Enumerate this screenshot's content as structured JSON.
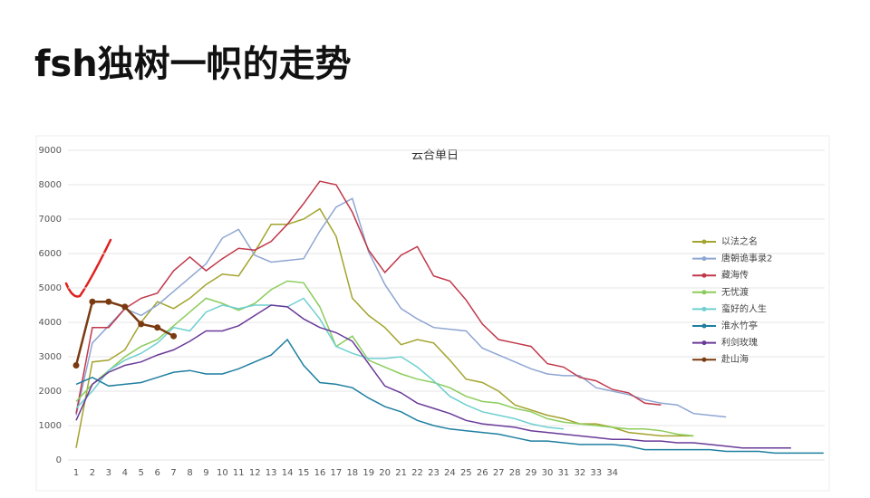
{
  "header": {
    "title": "fsh独树一帜的走势"
  },
  "chart_data": {
    "type": "line",
    "title": "云合单日",
    "categories": [
      1,
      2,
      3,
      4,
      5,
      6,
      7,
      8,
      9,
      10,
      11,
      12,
      13,
      14,
      15,
      16,
      17,
      18,
      19,
      20,
      21,
      22,
      23,
      24,
      25,
      26,
      27,
      28,
      29,
      30,
      31,
      32,
      33,
      34,
      null,
      null,
      null,
      null,
      null,
      null,
      null,
      null,
      null,
      null,
      null,
      null,
      null
    ],
    "ylim": [
      0,
      9000
    ],
    "yticks": [
      0,
      1000,
      2000,
      3000,
      4000,
      5000,
      6000,
      7000,
      8000,
      9000
    ],
    "grid": true,
    "series": [
      {
        "name": "以法之名",
        "color": "#a3a32e",
        "values": [
          350,
          2850,
          2900,
          3200,
          4000,
          4600,
          4400,
          4700,
          5100,
          5400,
          5350,
          6050,
          6850,
          6850,
          7000,
          7300,
          6500,
          4700,
          4200,
          3850,
          3350,
          3500,
          3400,
          2900,
          2350,
          2250,
          2000,
          1600,
          1450,
          1300,
          1200,
          1050,
          1050,
          950,
          800,
          750,
          700,
          700,
          700,
          null,
          null,
          null,
          null,
          null,
          null,
          null,
          null
        ]
      },
      {
        "name": "唐朝诡事录2",
        "color": "#8ea6d2",
        "values": [
          1300,
          3400,
          3900,
          4400,
          4200,
          4500,
          4900,
          5300,
          5700,
          6450,
          6700,
          5950,
          5750,
          5800,
          5850,
          6650,
          7350,
          7600,
          6050,
          5100,
          4400,
          4100,
          3850,
          3800,
          3750,
          3250,
          3050,
          2850,
          2650,
          2500,
          2450,
          2450,
          2100,
          2000,
          1900,
          1750,
          1650,
          1600,
          1350,
          1300,
          1250,
          null,
          null,
          null,
          null,
          null,
          null
        ]
      },
      {
        "name": "藏海传",
        "color": "#c0384a",
        "values": [
          1350,
          3850,
          3850,
          4400,
          4700,
          4850,
          5500,
          5900,
          5500,
          5850,
          6150,
          6100,
          6350,
          6850,
          7450,
          8100,
          8000,
          7200,
          6100,
          5450,
          5950,
          6200,
          5350,
          5200,
          4650,
          3950,
          3500,
          3400,
          3300,
          2800,
          2700,
          2400,
          2300,
          2050,
          1950,
          1650,
          1600,
          null,
          null,
          null,
          null,
          null,
          null,
          null,
          null,
          null,
          null
        ]
      },
      {
        "name": "无忧渡",
        "color": "#8ccc5c",
        "values": [
          1700,
          2200,
          2600,
          3000,
          3300,
          3500,
          3900,
          4300,
          4700,
          4550,
          4350,
          4550,
          4950,
          5200,
          5150,
          4450,
          3300,
          3600,
          2900,
          2700,
          2500,
          2350,
          2250,
          2100,
          1850,
          1700,
          1650,
          1500,
          1400,
          1200,
          1100,
          1050,
          1000,
          950,
          900,
          900,
          850,
          750,
          700,
          null,
          null,
          null,
          null,
          null,
          null,
          null,
          null
        ]
      },
      {
        "name": "蛮好的人生",
        "color": "#6fcfd0",
        "values": [
          1500,
          2000,
          2600,
          2900,
          3100,
          3400,
          3850,
          3750,
          4300,
          4500,
          4400,
          4500,
          4500,
          4450,
          4700,
          4100,
          3300,
          3100,
          2950,
          2950,
          3000,
          2700,
          2300,
          1850,
          1600,
          1400,
          1300,
          1200,
          1050,
          950,
          900,
          null,
          null,
          null,
          null,
          null,
          null,
          null,
          null,
          null,
          null,
          null,
          null,
          null,
          null,
          null,
          null
        ]
      },
      {
        "name": "淮水竹亭",
        "color": "#1f7fa0",
        "values": [
          2200,
          2400,
          2150,
          2200,
          2250,
          2400,
          2550,
          2600,
          2500,
          2500,
          2650,
          2850,
          3050,
          3500,
          2750,
          2250,
          2200,
          2100,
          1800,
          1550,
          1400,
          1150,
          1000,
          900,
          850,
          800,
          750,
          650,
          550,
          550,
          500,
          450,
          450,
          450,
          400,
          300,
          300,
          300,
          300,
          300,
          250,
          250,
          250,
          200,
          200,
          200,
          200
        ]
      },
      {
        "name": "利剑玫瑰",
        "color": "#6a3a98",
        "values": [
          1150,
          2200,
          2550,
          2750,
          2850,
          3050,
          3200,
          3450,
          3750,
          3750,
          3900,
          4200,
          4500,
          4450,
          4100,
          3850,
          3700,
          3450,
          2800,
          2150,
          1950,
          1650,
          1500,
          1350,
          1150,
          1050,
          1000,
          950,
          850,
          800,
          750,
          700,
          650,
          600,
          600,
          550,
          550,
          500,
          500,
          450,
          400,
          350,
          350,
          350,
          350,
          null,
          null
        ]
      },
      {
        "name": "赴山海",
        "color": "#7a3a10",
        "values": [
          2750,
          4600,
          4600,
          4450,
          3950,
          3850,
          3600,
          null,
          null,
          null,
          null,
          null,
          null,
          null,
          null,
          null,
          null,
          null,
          null,
          null,
          null,
          null,
          null,
          null,
          null,
          null,
          null,
          null,
          null,
          null,
          null,
          null,
          null,
          null,
          null,
          null,
          null,
          null,
          null,
          null,
          null,
          null,
          null,
          null,
          null,
          null,
          null
        ]
      }
    ]
  }
}
